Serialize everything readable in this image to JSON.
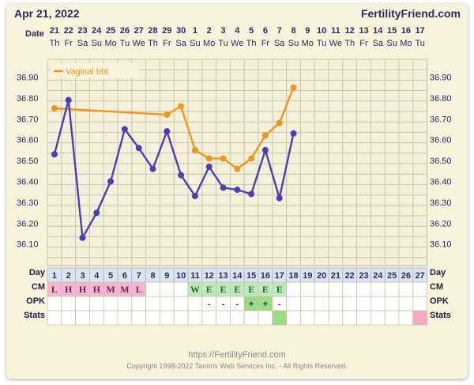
{
  "header": {
    "date": "Apr 21, 2022",
    "site": "FertilityFriend.com"
  },
  "footer": {
    "url": "https://FertilityFriend.com",
    "copyright": "Copyright 1998-2022 Tamtris Web Services Inc. - All Rights Reserved."
  },
  "row_labels": {
    "date": "Date",
    "day": "Day",
    "cm": "CM",
    "opk": "OPK",
    "stats": "Stats"
  },
  "colors": {
    "series_orange": "#f0961e",
    "series_purple": "#4b3eb8",
    "cm_pink": "#f2b8d2",
    "cm_green": "#bfe8bf",
    "opk_green": "#9cdb86",
    "stats_green": "#9bdd86",
    "stats_pink": "#f4a9c6"
  },
  "chart_data": {
    "type": "line",
    "dates": [
      "21",
      "22",
      "23",
      "24",
      "25",
      "26",
      "27",
      "28",
      "29",
      "30",
      "1",
      "2",
      "3",
      "4",
      "5",
      "6",
      "7",
      "8",
      "9",
      "10",
      "11",
      "12",
      "13",
      "14",
      "15",
      "16",
      "17"
    ],
    "weekdays": [
      "Th",
      "Fr",
      "Sa",
      "Su",
      "Mo",
      "Tu",
      "We",
      "Th",
      "Fr",
      "Sa",
      "Su",
      "Mo",
      "Tu",
      "We",
      "Th",
      "Fr",
      "Sa",
      "Su",
      "Mo",
      "Tu",
      "We",
      "Th",
      "Fr",
      "Sa",
      "Su",
      "Mo",
      "Tu"
    ],
    "days": [
      "1",
      "2",
      "3",
      "4",
      "5",
      "6",
      "7",
      "8",
      "9",
      "10",
      "11",
      "12",
      "13",
      "14",
      "15",
      "16",
      "17",
      "18",
      "19",
      "20",
      "21",
      "22",
      "23",
      "24",
      "25",
      "26",
      "27"
    ],
    "y_ticks": [
      "36.90",
      "36.80",
      "36.70",
      "36.60",
      "36.50",
      "36.40",
      "36.30",
      "36.20",
      "36.10"
    ],
    "ylim": [
      36.05,
      36.95
    ],
    "series": [
      {
        "name": "Vaginal bbt",
        "color": "#f0961e",
        "points": [
          [
            1,
            36.75
          ],
          [
            9,
            36.72
          ],
          [
            10,
            36.76
          ],
          [
            11,
            36.55
          ],
          [
            12,
            36.51
          ],
          [
            13,
            36.51
          ],
          [
            14,
            36.46
          ],
          [
            15,
            36.51
          ],
          [
            16,
            36.62
          ],
          [
            17,
            36.68
          ],
          [
            18,
            36.85
          ]
        ]
      },
      {
        "color": "#4b3eb8",
        "points": [
          [
            1,
            36.53
          ],
          [
            2,
            36.79
          ],
          [
            3,
            36.13
          ],
          [
            4,
            36.25
          ],
          [
            5,
            36.4
          ],
          [
            6,
            36.65
          ],
          [
            7,
            36.56
          ],
          [
            8,
            36.46
          ],
          [
            9,
            36.64
          ],
          [
            10,
            36.43
          ],
          [
            11,
            36.33
          ],
          [
            12,
            36.47
          ],
          [
            13,
            36.37
          ],
          [
            14,
            36.36
          ],
          [
            15,
            36.34
          ],
          [
            16,
            36.55
          ],
          [
            17,
            36.32
          ],
          [
            18,
            36.63
          ]
        ]
      }
    ],
    "cm": [
      "L",
      "H",
      "H",
      "H",
      "M",
      "M",
      "L",
      "",
      "",
      "",
      "W",
      "E",
      "E",
      "E",
      "E",
      "E",
      "E",
      "",
      "",
      "",
      "",
      "",
      "",
      "",
      "",
      "",
      ""
    ],
    "opk": [
      "",
      "",
      "",
      "",
      "",
      "",
      "",
      "",
      "",
      "",
      "",
      "-",
      "-",
      "-",
      "+",
      "+",
      "-",
      "",
      "",
      "",
      "",
      "",
      "",
      "",
      "",
      "",
      ""
    ],
    "stats": [
      "",
      "",
      "",
      "",
      "",
      "",
      "",
      "",
      "",
      "",
      "",
      "",
      "",
      "",
      "",
      "",
      "green",
      "",
      "",
      "",
      "",
      "",
      "",
      "",
      "",
      "",
      "pink"
    ],
    "legend_placement": "top-left",
    "grid": true
  }
}
